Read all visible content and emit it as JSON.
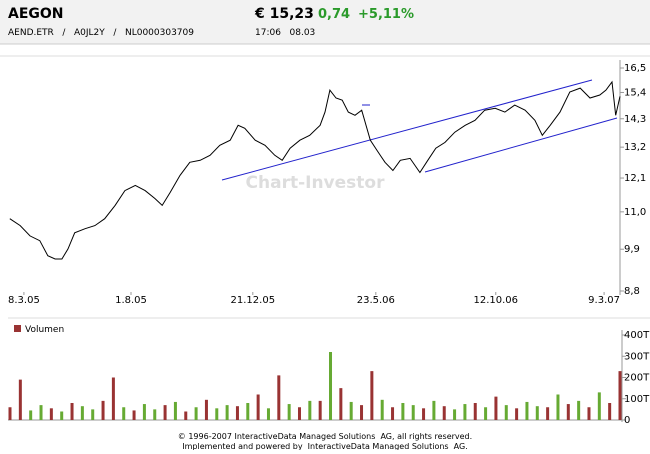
{
  "header": {
    "name": "AEGON",
    "price": "€ 15,23",
    "change": "0,74",
    "change_pct": "+5,11%",
    "ids": "AEND.ETR   /   A0JL2Y   /   NL0000303709",
    "time": "17:06   08.03"
  },
  "watermark": "Chart-Investor",
  "footer": [
    "© 1996-2007 InteractiveData Managed Solutions  AG, all rights reserved.",
    "Implemented and powered by  InteractiveData Managed Solutions  AG."
  ],
  "chart_data": [
    {
      "type": "line",
      "color": "#000000",
      "log_scale": true,
      "x": [
        0.3,
        2.0,
        3.6,
        5.2,
        6.5,
        7.7,
        8.8,
        9.8,
        10.9,
        12.6,
        14.2,
        15.8,
        17.5,
        19.1,
        20.8,
        22.4,
        24.0,
        25.2,
        26.5,
        28.1,
        29.7,
        31.4,
        33.0,
        34.6,
        36.3,
        37.6,
        38.7,
        40.4,
        42.0,
        43.6,
        44.8,
        46.1,
        47.7,
        49.3,
        51.0,
        51.8,
        52.6,
        53.6,
        54.6,
        55.6,
        56.7,
        57.8,
        59.2,
        60.3,
        61.6,
        62.9,
        64.1,
        65.7,
        67.3,
        68.6,
        69.9,
        71.4,
        73.0,
        74.7,
        76.3,
        77.9,
        79.6,
        81.2,
        82.8,
        84.5,
        86.1,
        87.3,
        88.6,
        90.2,
        91.8,
        93.5,
        95.1,
        96.7,
        97.7,
        98.7,
        99.3,
        100
      ],
      "values": [
        10.79,
        10.58,
        10.28,
        10.14,
        9.72,
        9.63,
        9.63,
        9.91,
        10.37,
        10.49,
        10.58,
        10.79,
        11.2,
        11.68,
        11.85,
        11.68,
        11.42,
        11.2,
        11.62,
        12.19,
        12.65,
        12.72,
        12.9,
        13.27,
        13.46,
        14.04,
        13.92,
        13.46,
        13.27,
        12.9,
        12.72,
        13.16,
        13.46,
        13.65,
        14.04,
        14.57,
        15.5,
        15.16,
        15.07,
        14.57,
        14.44,
        14.65,
        13.46,
        13.08,
        12.65,
        12.36,
        12.72,
        12.79,
        12.29,
        12.72,
        13.16,
        13.38,
        13.77,
        14.04,
        14.24,
        14.65,
        14.73,
        14.57,
        14.86,
        14.65,
        14.24,
        13.65,
        14.04,
        14.57,
        15.42,
        15.59,
        15.16,
        15.29,
        15.5,
        15.86,
        14.44,
        15.23
      ],
      "xlim": [
        0,
        100
      ],
      "xticks": [
        {
          "value": 2.6,
          "label": "8.3.05"
        },
        {
          "value": 20.1,
          "label": "1.8.05"
        },
        {
          "value": 40,
          "label": "21.12.05"
        },
        {
          "value": 60.1,
          "label": "23.5.06"
        },
        {
          "value": 79.7,
          "label": "12.10.06"
        },
        {
          "value": 97.4,
          "label": "9.3.07"
        }
      ],
      "ylim": [
        8.8,
        16.5
      ],
      "yticks": [
        {
          "value": 16.5,
          "label": "16,5"
        },
        {
          "value": 15.4,
          "label": "15,4"
        },
        {
          "value": 14.3,
          "label": "14,3"
        },
        {
          "value": 13.2,
          "label": "13,2"
        },
        {
          "value": 12.1,
          "label": "12,1"
        },
        {
          "value": 11,
          "label": "11,0"
        },
        {
          "value": 9.9,
          "label": "9,9"
        },
        {
          "value": 8.8,
          "label": "8,8"
        }
      ]
    },
    {
      "type": "bar",
      "name": "Volumen",
      "color": "#993333",
      "values": [
        60000,
        190000,
        45000,
        70000,
        55000,
        40000,
        80000,
        65000,
        50000,
        90000,
        200000,
        60000,
        45000,
        75000,
        50000,
        70000,
        85000,
        40000,
        60000,
        95000,
        55000,
        70000,
        65000,
        80000,
        120000,
        55000,
        210000,
        75000,
        60000,
        90000,
        90000,
        320000,
        150000,
        85000,
        70000,
        230000,
        95000,
        60000,
        80000,
        70000,
        55000,
        90000,
        65000,
        50000,
        75000,
        80000,
        60000,
        110000,
        70000,
        55000,
        85000,
        65000,
        60000,
        120000,
        75000,
        90000,
        60000,
        130000,
        80000,
        230000
      ],
      "colors": [
        "#993333",
        "#993333",
        "#66aa33",
        "#66aa33",
        "#993333",
        "#66aa33",
        "#993333",
        "#66aa33",
        "#66aa33",
        "#993333",
        "#993333",
        "#66aa33",
        "#993333",
        "#66aa33",
        "#66aa33",
        "#993333",
        "#66aa33",
        "#993333",
        "#66aa33",
        "#993333",
        "#66aa33",
        "#66aa33",
        "#993333",
        "#66aa33",
        "#993333",
        "#66aa33",
        "#993333",
        "#66aa33",
        "#993333",
        "#66aa33",
        "#993333",
        "#66aa33",
        "#993333",
        "#66aa33",
        "#993333",
        "#993333",
        "#66aa33",
        "#993333",
        "#66aa33",
        "#66aa33",
        "#993333",
        "#66aa33",
        "#993333",
        "#66aa33",
        "#66aa33",
        "#993333",
        "#66aa33",
        "#993333",
        "#66aa33",
        "#993333",
        "#66aa33",
        "#66aa33",
        "#993333",
        "#66aa33",
        "#993333",
        "#66aa33",
        "#993333",
        "#66aa33",
        "#993333",
        "#993333"
      ],
      "ylim": [
        0,
        400000
      ],
      "yticks": [
        {
          "value": 0,
          "label": "0"
        },
        {
          "value": 100000,
          "label": "100T"
        },
        {
          "value": 200000,
          "label": "200T"
        },
        {
          "value": 300000,
          "label": "300T"
        },
        {
          "value": 400000,
          "label": "400T"
        }
      ]
    }
  ]
}
